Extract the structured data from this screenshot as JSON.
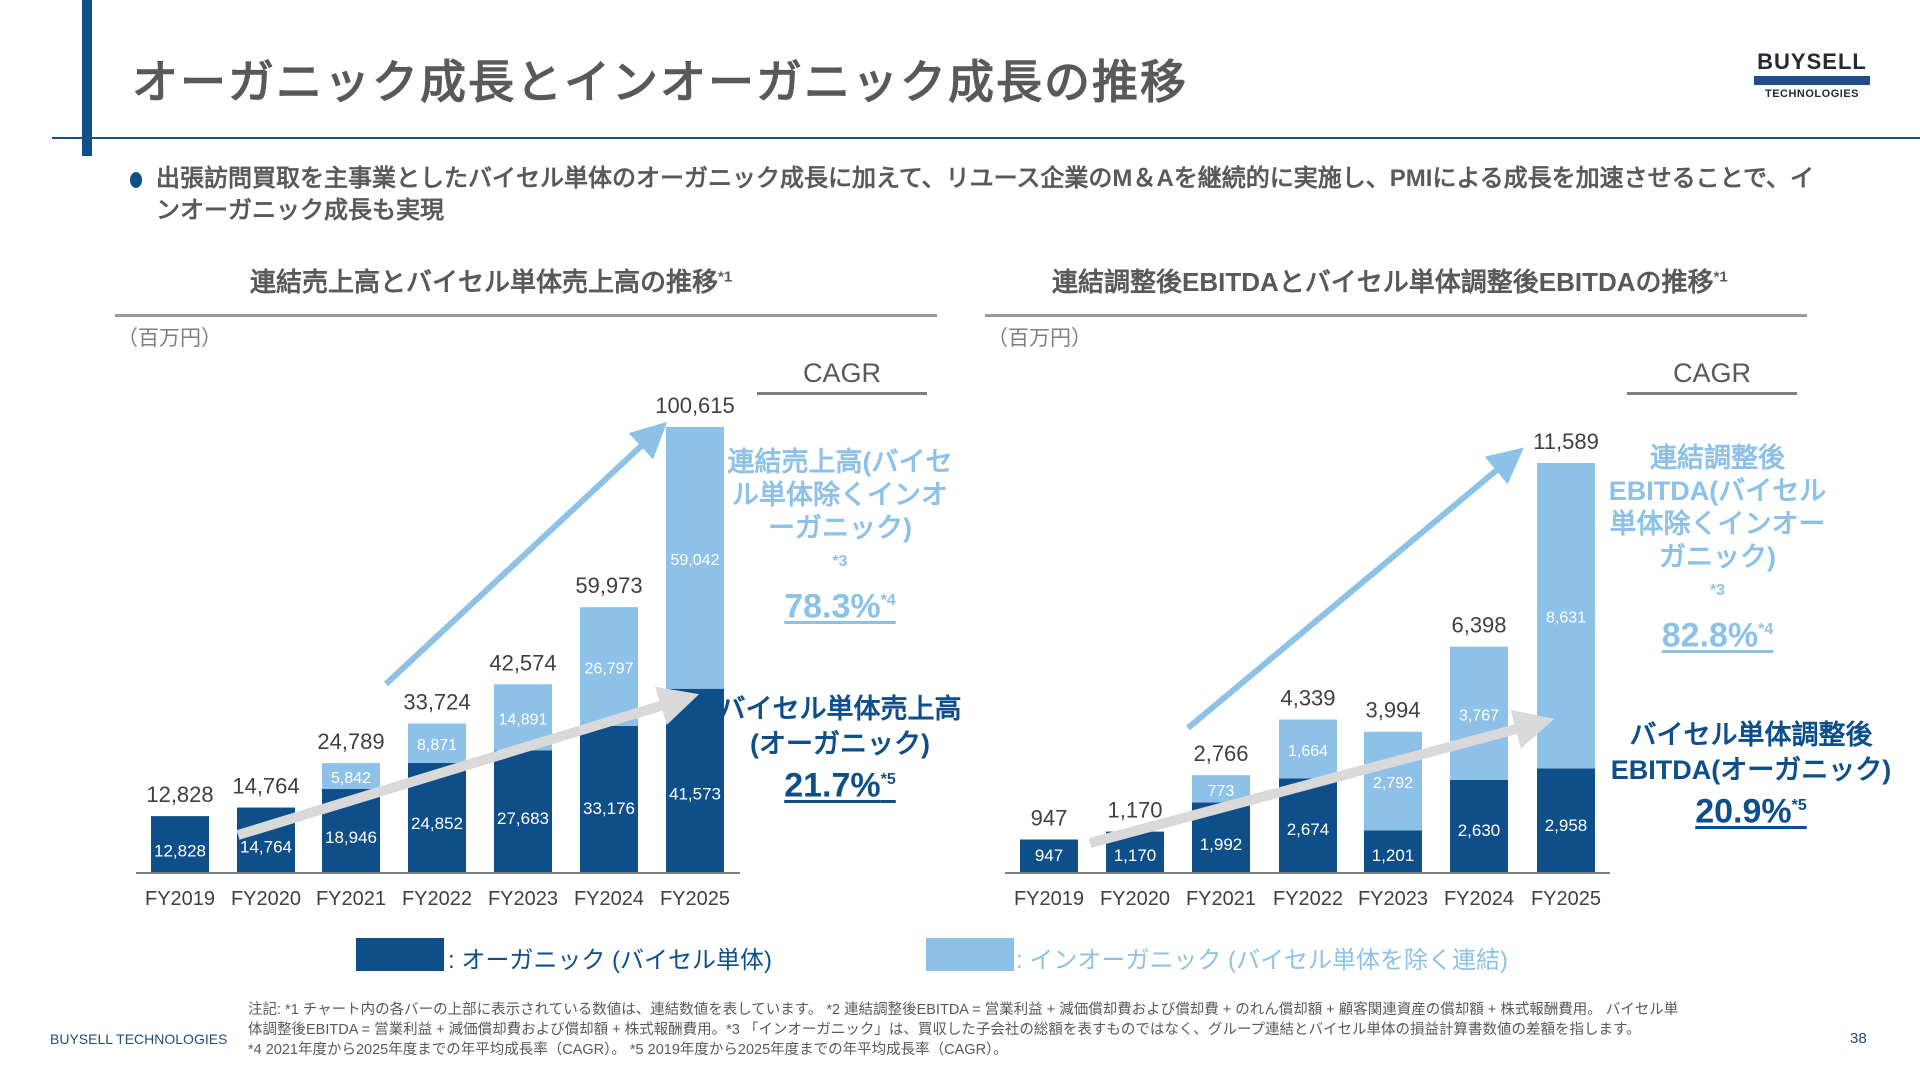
{
  "header": {
    "title": "オーガニック成長とインオーガニック成長の推移",
    "logo_top": "BUYSELL",
    "logo_bottom": "TECHNOLOGIES"
  },
  "bullet": "出張訪問買取を主事業としたバイセル単体のオーガニック成長に加えて、リユース企業のM＆Aを継続的に実施し、PMIによる成長を加速させることで、インオーガニック成長も実現",
  "colors": {
    "organic": "#0e4f8a",
    "inorganic": "#8dc1e8",
    "arrow_light": "#8dc1e8",
    "arrow_gray": "#d9d9d9"
  },
  "chart_data": [
    {
      "type": "bar",
      "stacked": true,
      "title": "連結売上高とバイセル単体売上高の推移",
      "title_note": "*1",
      "unit": "（百万円）",
      "categories": [
        "FY2019",
        "FY2020",
        "FY2021",
        "FY2022",
        "FY2023",
        "FY2024",
        "FY2025"
      ],
      "series": [
        {
          "name": "オーガニック (バイセル単体)",
          "values": [
            12828,
            14764,
            18946,
            24852,
            27683,
            33176,
            41573
          ],
          "labels": [
            "12,828",
            "14,764",
            "18,946",
            "24,852",
            "27,683",
            "33,176",
            "41,573"
          ]
        },
        {
          "name": "インオーガニック (バイセル単体を除く連結)",
          "values": [
            0,
            0,
            5842,
            8871,
            14891,
            26797,
            59042
          ],
          "labels": [
            "",
            "",
            "5,842",
            "8,871",
            "14,891",
            "26,797",
            "59,042"
          ]
        }
      ],
      "totals": [
        12828,
        14764,
        24789,
        33724,
        42574,
        59973,
        100615
      ],
      "total_labels": [
        "12,828",
        "14,764",
        "24,789",
        "33,724",
        "42,574",
        "59,973",
        "100,615"
      ],
      "ylim": [
        0,
        100615
      ],
      "cagr_header": "CAGR",
      "annotations": {
        "inorganic_label": "連結売上高(バイセル単体除くインオーガニック)",
        "inorganic_note": "*3",
        "inorganic_cagr": "78.3%",
        "inorganic_cagr_note": "*4",
        "organic_label_1": "バイセル単体売上高",
        "organic_label_2": "(オーガニック)",
        "organic_cagr": "21.7%",
        "organic_cagr_note": "*5"
      }
    },
    {
      "type": "bar",
      "stacked": true,
      "title": "連結調整後EBITDAとバイセル単体調整後EBITDAの推移",
      "title_note": "*1",
      "unit": "（百万円）",
      "categories": [
        "FY2019",
        "FY2020",
        "FY2021",
        "FY2022",
        "FY2023",
        "FY2024",
        "FY2025"
      ],
      "series": [
        {
          "name": "オーガニック (バイセル単体)",
          "values": [
            947,
            1170,
            1992,
            2674,
            1201,
            2630,
            2958
          ],
          "labels": [
            "947",
            "1,170",
            "1,992",
            "2,674",
            "1,201",
            "2,630",
            "2,958"
          ]
        },
        {
          "name": "インオーガニック (バイセル単体を除く連結)",
          "values": [
            0,
            0,
            773,
            1664,
            2792,
            3767,
            8631
          ],
          "labels": [
            "",
            "",
            "773",
            "1,664",
            "2,792",
            "3,767",
            "8,631"
          ]
        }
      ],
      "totals": [
        947,
        1170,
        2766,
        4339,
        3994,
        6398,
        11589
      ],
      "total_labels": [
        "947",
        "1,170",
        "2,766",
        "4,339",
        "3,994",
        "6,398",
        "11,589"
      ],
      "ylim": [
        0,
        11589
      ],
      "cagr_header": "CAGR",
      "annotations": {
        "inorganic_label_1": "連結調整後",
        "inorganic_label_2": "EBITDA(バイセル単体除くインオーガニック)",
        "inorganic_note": "*3",
        "inorganic_cagr": "82.8%",
        "inorganic_cagr_note": "*4",
        "organic_label_1": "バイセル単体調整後",
        "organic_label_2": "EBITDA(オーガニック)",
        "organic_cagr": "20.9%",
        "organic_cagr_note": "*5"
      }
    }
  ],
  "legend": {
    "organic": ": オーガニック (バイセル単体)",
    "inorganic": ": インオーガニック (バイセル単体を除く連結)"
  },
  "footnotes": {
    "line1": "注記: *1 チャート内の各バーの上部に表示されている数値は、連結数値を表しています。 *2 連結調整後EBITDA = 営業利益 + 減価償却費および償却費 +  のれん償却額 + 顧客関連資産の償却額 + 株式報酬費用。 バイセル単",
    "line2": "体調整後EBITDA = 営業利益 + 減価償却費および償却額 + 株式報酬費用。*3 「インオーガニック」は、買収した子会社の総額を表すものではなく、グループ連結とバイセル単体の損益計算書数値の差額を指します。",
    "line3": "*4 2021年度から2025年度までの年平均成長率（CAGR）。 *5 2019年度から2025年度までの年平均成長率（CAGR）。"
  },
  "footer": {
    "brand": "BUYSELL TECHNOLOGIES",
    "page": "38"
  }
}
